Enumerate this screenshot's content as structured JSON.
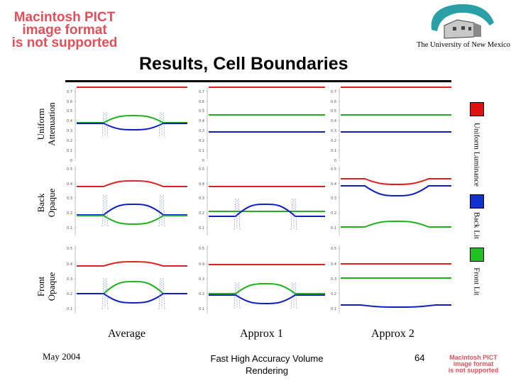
{
  "slide": {
    "title": "Results, Cell Boundaries",
    "pict_notice_top": [
      "Macintosh PICT",
      "image format",
      "is not supported"
    ],
    "pict_notice_bottom": [
      "Macintosh PICT",
      "image format",
      "is not supported"
    ],
    "university": "The University of New Mexico",
    "row_labels": [
      [
        "Uniform",
        "Attenuation"
      ],
      [
        "Back",
        "Opaque"
      ],
      [
        "Front",
        "Opaque"
      ]
    ],
    "col_labels": [
      "Average",
      "Approx 1",
      "Approx 2"
    ],
    "right_labels": [
      "Uniform Luminance",
      "Back Lit",
      "Front Lit"
    ],
    "swatch_colors": [
      "#e01010",
      "#1030d0",
      "#20c020"
    ],
    "footer_left": "May 2004",
    "footer_center": [
      "Fast High Accuracy Volume",
      "Rendering"
    ],
    "page_number": "64"
  },
  "chart_data": {
    "type": "line",
    "series_colors": {
      "red": "#e02020",
      "green": "#20b020",
      "blue": "#1020c0"
    },
    "ylim": [
      0,
      0.7
    ],
    "row_tick_labels": [
      [
        "0.7",
        "0.6",
        "0.5",
        "0.4",
        "0.3",
        "0.2",
        "0.1",
        "0"
      ],
      [
        "0.5",
        "0.4",
        "0.3",
        "0.2",
        "0.1"
      ],
      [
        "0.5",
        "0.4",
        "0.3",
        "0.2",
        "0.1"
      ]
    ]
  }
}
